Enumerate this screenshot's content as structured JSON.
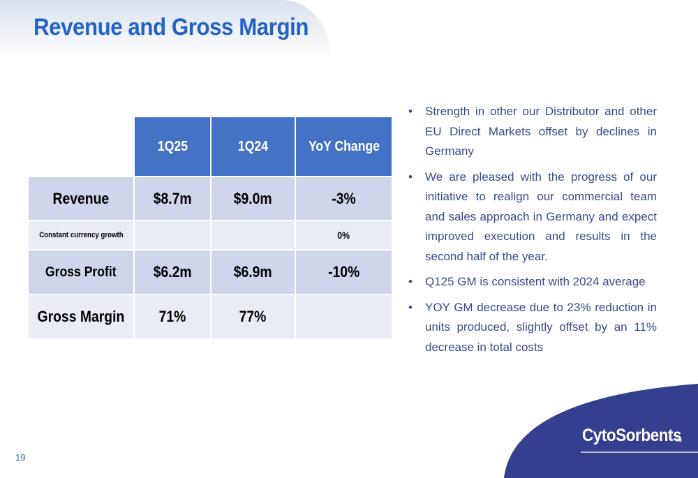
{
  "slide": {
    "title": "Revenue and Gross Margin",
    "page_number": "19",
    "logo_text": "CytoSorbents",
    "logo_tm": "TM"
  },
  "colors": {
    "title": "#2462c9",
    "header_fill": "#4472c4",
    "row_dark": "#cfd5ea",
    "row_light": "#e9ebf5",
    "bullet_text": "#3a4a8c",
    "swoosh": "#333f8f"
  },
  "table": {
    "headers": [
      "1Q25",
      "1Q24",
      "YoY Change"
    ],
    "rows": [
      {
        "label": "Revenue",
        "q1": "$8.7m",
        "q2": "$9.0m",
        "yoy": "-3%"
      },
      {
        "label": "Constant currency growth",
        "q1": "",
        "q2": "",
        "yoy": "0%"
      },
      {
        "label": "Gross Profit",
        "q1": "$6.2m",
        "q2": "$6.9m",
        "yoy": "-10%"
      },
      {
        "label": "Gross Margin",
        "q1": "71%",
        "q2": "77%",
        "yoy": ""
      }
    ]
  },
  "bullets": [
    "Strength in other our Distributor and other EU Direct Markets offset by declines in Germany",
    "We are pleased with the progress of our initiative to realign our commercial team and sales approach in Germany and expect improved execution and results in the second half of the year.",
    "Q125 GM is consistent with 2024 average",
    "YOY GM decrease due to 23% reduction in units produced, slightly offset by an 11% decrease in total costs"
  ],
  "bullet_marker": "•"
}
